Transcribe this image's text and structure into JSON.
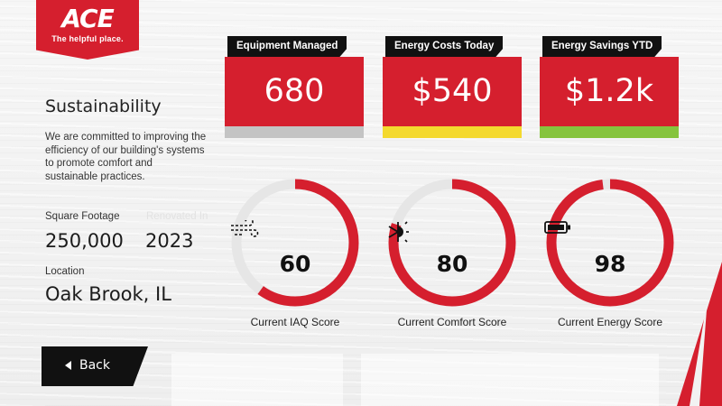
{
  "brand": {
    "logo_text": "ACE",
    "tagline": "The helpful place.",
    "color": "#d51f2e"
  },
  "page": {
    "title": "Sustainability",
    "description": "We are committed to improving the efficiency of our building's systems to promote comfort and sustainable practices."
  },
  "stats": {
    "square_footage_label": "Square Footage",
    "square_footage_value": "250,000",
    "year_label": "Renovated In",
    "year_value": "2023",
    "location_label": "Location",
    "location_value": "Oak Brook, IL"
  },
  "kpis": [
    {
      "label": "Equipment Managed",
      "value": "680",
      "status_color": "#c4c4c4"
    },
    {
      "label": "Energy Costs Today",
      "value": "$540",
      "status_color": "#f4d92e"
    },
    {
      "label": "Energy Savings YTD",
      "value": "$1.2k",
      "status_color": "#86c43d"
    }
  ],
  "gauges": [
    {
      "label": "Current IAQ Score",
      "value": "60",
      "fraction": 0.6,
      "icon": "wind-icon"
    },
    {
      "label": "Current Comfort Score",
      "value": "80",
      "fraction": 0.8,
      "icon": "sun-snowflake-icon"
    },
    {
      "label": "Current Energy Score",
      "value": "98",
      "fraction": 0.98,
      "icon": "battery-icon"
    }
  ],
  "colors": {
    "accent": "#d51f2e",
    "track": "#e6e6e6",
    "dark": "#111111"
  },
  "back_button": {
    "label": "Back"
  }
}
